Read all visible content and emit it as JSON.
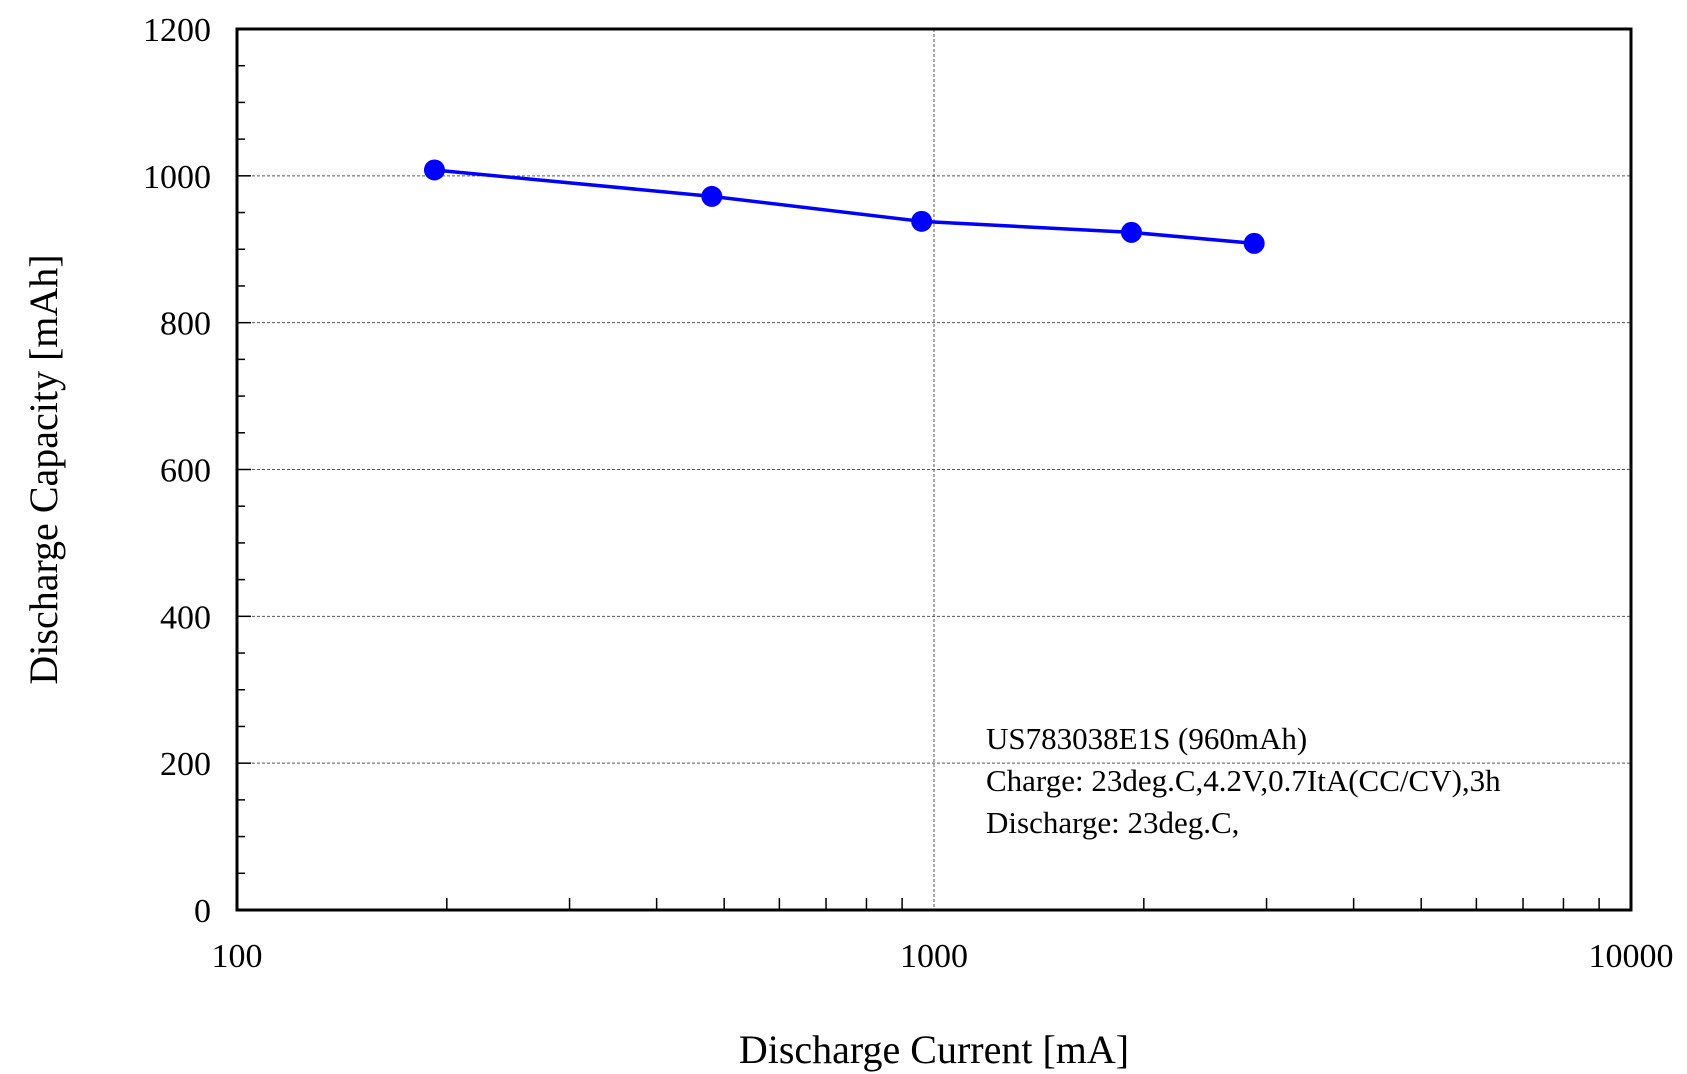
{
  "chart_data": {
    "type": "line",
    "title": "",
    "xlabel": "Discharge Current [mA]",
    "ylabel": "Discharge Capacity [mAh]",
    "xscale": "log",
    "xlim": [
      100,
      10000
    ],
    "ylim": [
      0,
      1200
    ],
    "x_ticks": [
      {
        "value": 100,
        "label": "100"
      },
      {
        "value": 1000,
        "label": "1000"
      },
      {
        "value": 10000,
        "label": "10000"
      }
    ],
    "y_ticks": [
      {
        "value": 0,
        "label": "0"
      },
      {
        "value": 200,
        "label": "200"
      },
      {
        "value": 400,
        "label": "400"
      },
      {
        "value": 600,
        "label": "600"
      },
      {
        "value": 800,
        "label": "800"
      },
      {
        "value": 1000,
        "label": "1000"
      },
      {
        "value": 1200,
        "label": "1200"
      }
    ],
    "grid": true,
    "series": [
      {
        "color": "#0000ff",
        "x": [
          192,
          480,
          960,
          1920,
          2880
        ],
        "y": [
          1008,
          972,
          938,
          923,
          908
        ]
      }
    ],
    "annotations": [
      "US783038E1S (960mAh)",
      "Charge: 23deg.C,4.2V,0.7ItA(CC/CV),3h",
      "Discharge: 23deg.C,"
    ]
  }
}
